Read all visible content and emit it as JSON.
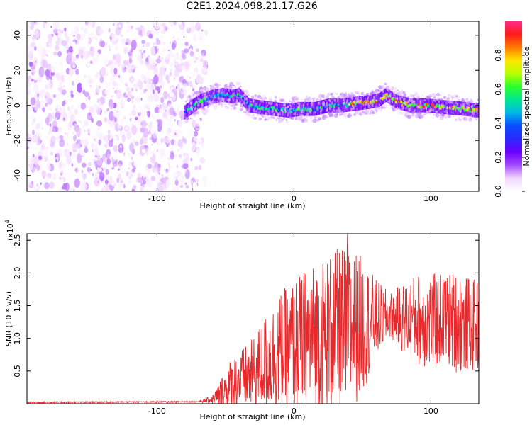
{
  "title": "C2E1.2024.098.21.17.G26",
  "colors": {
    "snr_line": "#e8282a",
    "colormap": [
      "#ffffff",
      "#f2d6ff",
      "#a24bff",
      "#6a00ff",
      "#2a28ff",
      "#0a4cff",
      "#00b8e8",
      "#00e890",
      "#29ff2d",
      "#b8ff00",
      "#ffe600",
      "#ff7a00",
      "#ff1a1a",
      "#ff2a8a"
    ]
  },
  "chart_data": [
    {
      "type": "heatmap",
      "name": "spectrogram",
      "xlabel": "Height of straight line (km)",
      "ylabel": "Frequency (Hz)",
      "xlim": [
        -195,
        135
      ],
      "ylim": [
        -49,
        48
      ],
      "xticks": [
        -100,
        0,
        100
      ],
      "xtick_labels": [
        "-100",
        "0",
        "100"
      ],
      "yticks": [
        -40,
        -20,
        0,
        20,
        40
      ],
      "ytick_labels": [
        "-40",
        "-20",
        "0",
        "20",
        "40"
      ],
      "noise_region_x": [
        -195,
        -70
      ],
      "signal_track": {
        "x": [
          -80,
          -70,
          -60,
          -52,
          -45,
          -40,
          -33,
          -25,
          -15,
          -5,
          5,
          15,
          25,
          35,
          45,
          55,
          62,
          67,
          75,
          85,
          95,
          110,
          125,
          135
        ],
        "y": [
          -4,
          2,
          5,
          6,
          5,
          6,
          0,
          -1,
          -2,
          -3,
          -2,
          -2,
          0,
          0,
          1,
          2,
          3,
          6,
          2,
          0,
          0,
          -1,
          -2,
          -3
        ]
      },
      "colorbar": {
        "label": "Normalized spectral amplitude",
        "ticks": [
          0.0,
          0.2,
          0.4,
          0.6,
          0.8
        ],
        "tick_labels": [
          "0.0",
          "0.2",
          "0.4",
          "0.6",
          "0.8"
        ],
        "range": [
          0,
          1
        ]
      }
    },
    {
      "type": "line",
      "name": "snr",
      "xlabel": "Height of straight line (km)",
      "ylabel": "SNR (10 * v/v)",
      "multiplier_label": "(x10",
      "multiplier_exp": "4",
      "xlim": [
        -195,
        135
      ],
      "ylim": [
        0,
        2.6
      ],
      "xticks": [
        -100,
        0,
        100
      ],
      "xtick_labels": [
        "-100",
        "0",
        "100"
      ],
      "yticks": [
        0.5,
        1.0,
        1.5,
        2.0,
        2.5
      ],
      "ytick_labels": [
        "0.5",
        "1.0",
        "1.5",
        "2.0",
        "2.5"
      ],
      "envelope": {
        "x": [
          -195,
          -70,
          -60,
          -55,
          -50,
          -45,
          -40,
          -30,
          -20,
          -10,
          0,
          10,
          20,
          30,
          40,
          50,
          60,
          70,
          80,
          90,
          100,
          110,
          120,
          130,
          135
        ],
        "mean": [
          0.02,
          0.03,
          0.06,
          0.12,
          0.2,
          0.3,
          0.35,
          0.45,
          0.65,
          0.8,
          0.9,
          1.0,
          1.05,
          1.1,
          1.15,
          1.2,
          1.3,
          1.35,
          1.3,
          1.3,
          1.25,
          1.3,
          1.25,
          1.2,
          1.2
        ],
        "amplitude": [
          0.01,
          0.01,
          0.06,
          0.2,
          0.35,
          0.45,
          0.45,
          0.55,
          0.75,
          0.9,
          1.0,
          1.1,
          1.2,
          1.25,
          1.3,
          1.05,
          0.6,
          0.35,
          0.55,
          0.7,
          0.75,
          0.7,
          0.8,
          0.7,
          0.7
        ]
      },
      "peak": {
        "x": 39,
        "y": 2.6
      }
    }
  ]
}
